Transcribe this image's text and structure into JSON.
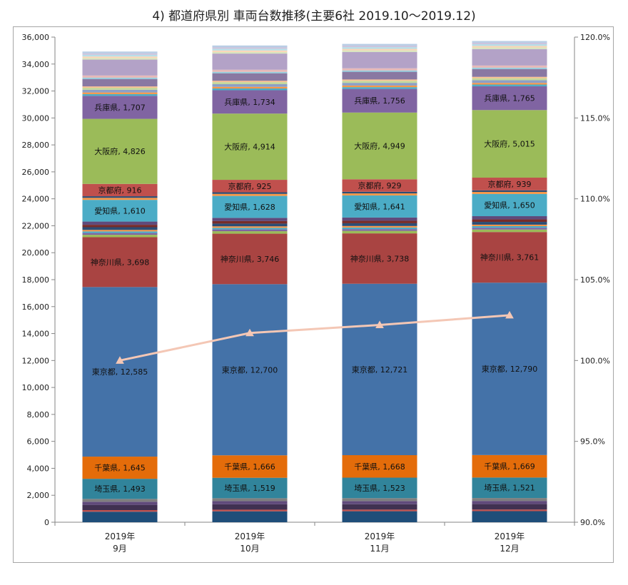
{
  "title": "4) 都道府県別 車両台数推移(主要6社 2019.10～2019.12)",
  "chart_data": {
    "type": "bar",
    "stacked": true,
    "categories": [
      [
        "2019年",
        "9月"
      ],
      [
        "2019年",
        "10月"
      ],
      [
        "2019年",
        "11月"
      ],
      [
        "2019年",
        "12月"
      ]
    ],
    "ylim": [
      0,
      36000
    ],
    "y_ticks": [
      "0",
      "2,000",
      "4,000",
      "6,000",
      "8,000",
      "10,000",
      "12,000",
      "14,000",
      "16,000",
      "18,000",
      "20,000",
      "22,000",
      "24,000",
      "26,000",
      "28,000",
      "30,000",
      "32,000",
      "34,000",
      "36,000"
    ],
    "y2lim": [
      90,
      120
    ],
    "y2_ticks": [
      "90.0%",
      "95.0%",
      "100.0%",
      "105.0%",
      "110.0%",
      "115.0%",
      "120.0%"
    ],
    "grid": false,
    "series": [
      {
        "values": [
          780,
          810,
          815,
          820
        ],
        "color": "#1f4e79"
      },
      {
        "values": [
          120,
          120,
          120,
          120
        ],
        "color": "#c0504d"
      },
      {
        "values": [
          390,
          400,
          400,
          405
        ],
        "color": "#403151"
      },
      {
        "values": [
          230,
          235,
          235,
          235
        ],
        "color": "#604a7b"
      },
      {
        "values": [
          210,
          215,
          215,
          215
        ],
        "color": "#7f7f7f"
      },
      {
        "name": "埼玉県",
        "values": [
          1493,
          1519,
          1523,
          1521
        ],
        "color": "#31849b"
      },
      {
        "name": "千葉県",
        "values": [
          1645,
          1666,
          1668,
          1669
        ],
        "color": "#e46c0a"
      },
      {
        "name": "東京都",
        "values": [
          12585,
          12700,
          12721,
          12790
        ],
        "color": "#4472a8"
      },
      {
        "name": "神奈川県",
        "values": [
          3698,
          3746,
          3738,
          3761
        ],
        "color": "#a94442"
      },
      {
        "values": [
          180,
          185,
          185,
          185
        ],
        "color": "#9bbb59"
      },
      {
        "values": [
          130,
          130,
          130,
          130
        ],
        "color": "#8064a2"
      },
      {
        "values": [
          120,
          120,
          120,
          120
        ],
        "color": "#4bacc6"
      },
      {
        "values": [
          110,
          110,
          110,
          110
        ],
        "color": "#f79646"
      },
      {
        "values": [
          200,
          205,
          205,
          205
        ],
        "color": "#2c4d75"
      },
      {
        "values": [
          180,
          185,
          185,
          185
        ],
        "color": "#772c2a"
      },
      {
        "values": [
          240,
          240,
          240,
          240
        ],
        "color": "#604a7b"
      },
      {
        "name": "愛知県",
        "values": [
          1610,
          1628,
          1641,
          1650
        ],
        "color": "#4bacc6"
      },
      {
        "values": [
          150,
          150,
          150,
          150
        ],
        "color": "#f79646"
      },
      {
        "values": [
          120,
          120,
          120,
          120
        ],
        "color": "#2c4d75"
      },
      {
        "name": "京都府",
        "values": [
          916,
          925,
          929,
          939
        ],
        "color": "#c0504d"
      },
      {
        "name": "大阪府",
        "values": [
          4826,
          4914,
          4949,
          5015
        ],
        "color": "#9bbb59"
      },
      {
        "name": "兵庫県",
        "values": [
          1707,
          1734,
          1756,
          1765
        ],
        "color": "#8064a2"
      },
      {
        "values": [
          130,
          130,
          130,
          130
        ],
        "color": "#4bacc6"
      },
      {
        "values": [
          120,
          120,
          120,
          120
        ],
        "color": "#f79646"
      },
      {
        "values": [
          200,
          200,
          200,
          200
        ],
        "color": "#8da0c5"
      },
      {
        "values": [
          150,
          150,
          150,
          150
        ],
        "color": "#c4d79b"
      },
      {
        "values": [
          100,
          100,
          100,
          100
        ],
        "color": "#fac090"
      },
      {
        "values": [
          550,
          560,
          570,
          580
        ],
        "color": "#8978a2"
      },
      {
        "values": [
          100,
          100,
          100,
          100
        ],
        "color": "#93cddd"
      },
      {
        "values": [
          160,
          160,
          160,
          160
        ],
        "color": "#e6b9b8"
      },
      {
        "values": [
          1180,
          1200,
          1210,
          1220
        ],
        "color": "#b3a2c7"
      },
      {
        "values": [
          120,
          120,
          120,
          120
        ],
        "color": "#d7e4bd"
      },
      {
        "values": [
          110,
          110,
          110,
          110
        ],
        "color": "#fbd5b5"
      },
      {
        "values": [
          130,
          130,
          130,
          130
        ],
        "color": "#b7dee8"
      },
      {
        "values": [
          100,
          100,
          100,
          100
        ],
        "color": "#ccc1da"
      },
      {
        "values": [
          140,
          140,
          140,
          140
        ],
        "color": "#b9cde5"
      }
    ],
    "line_series": {
      "axis": "secondary",
      "values": [
        100.0,
        101.7,
        102.2,
        102.8
      ],
      "color": "#f4c7b5",
      "marker": "triangle"
    }
  }
}
